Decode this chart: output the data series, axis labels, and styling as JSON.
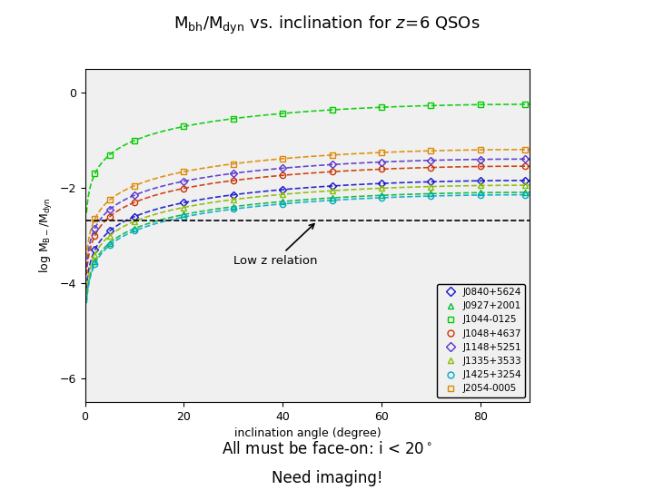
{
  "title_parts": [
    "M",
    "bh",
    "M",
    "dyn"
  ],
  "xlabel": "inclination angle (degree)",
  "ylabel": "log M$_{B-}$/M$_{dyn}$",
  "xlim": [
    0,
    90
  ],
  "ylim": [
    -6.5,
    0.5
  ],
  "yticks": [
    0,
    -2,
    -4,
    -6
  ],
  "xticks": [
    0,
    20,
    40,
    60,
    80
  ],
  "hline_y": -2.7,
  "annotation_text": "Low z relation",
  "background_color": "#ffffff",
  "plot_bg": "#f0f0f0",
  "sources": [
    {
      "name": "J0840+5624",
      "color": "#1515cc",
      "marker": "D",
      "C": -1.85
    },
    {
      "name": "J0927+2001",
      "color": "#00bb33",
      "marker": "^",
      "C": -2.1
    },
    {
      "name": "J1044-0125",
      "color": "#00cc00",
      "marker": "s",
      "C": -0.25
    },
    {
      "name": "J1048+4637",
      "color": "#cc3300",
      "marker": "o",
      "C": -1.55
    },
    {
      "name": "J1148+5251",
      "color": "#5533cc",
      "marker": "D",
      "C": -1.4
    },
    {
      "name": "J1335+3533",
      "color": "#88bb00",
      "marker": "^",
      "C": -1.95
    },
    {
      "name": "J1425+3254",
      "color": "#00aacc",
      "marker": "o",
      "C": -2.15
    },
    {
      "name": "J2054-0005",
      "color": "#dd8800",
      "marker": "s",
      "C": -1.2
    }
  ]
}
